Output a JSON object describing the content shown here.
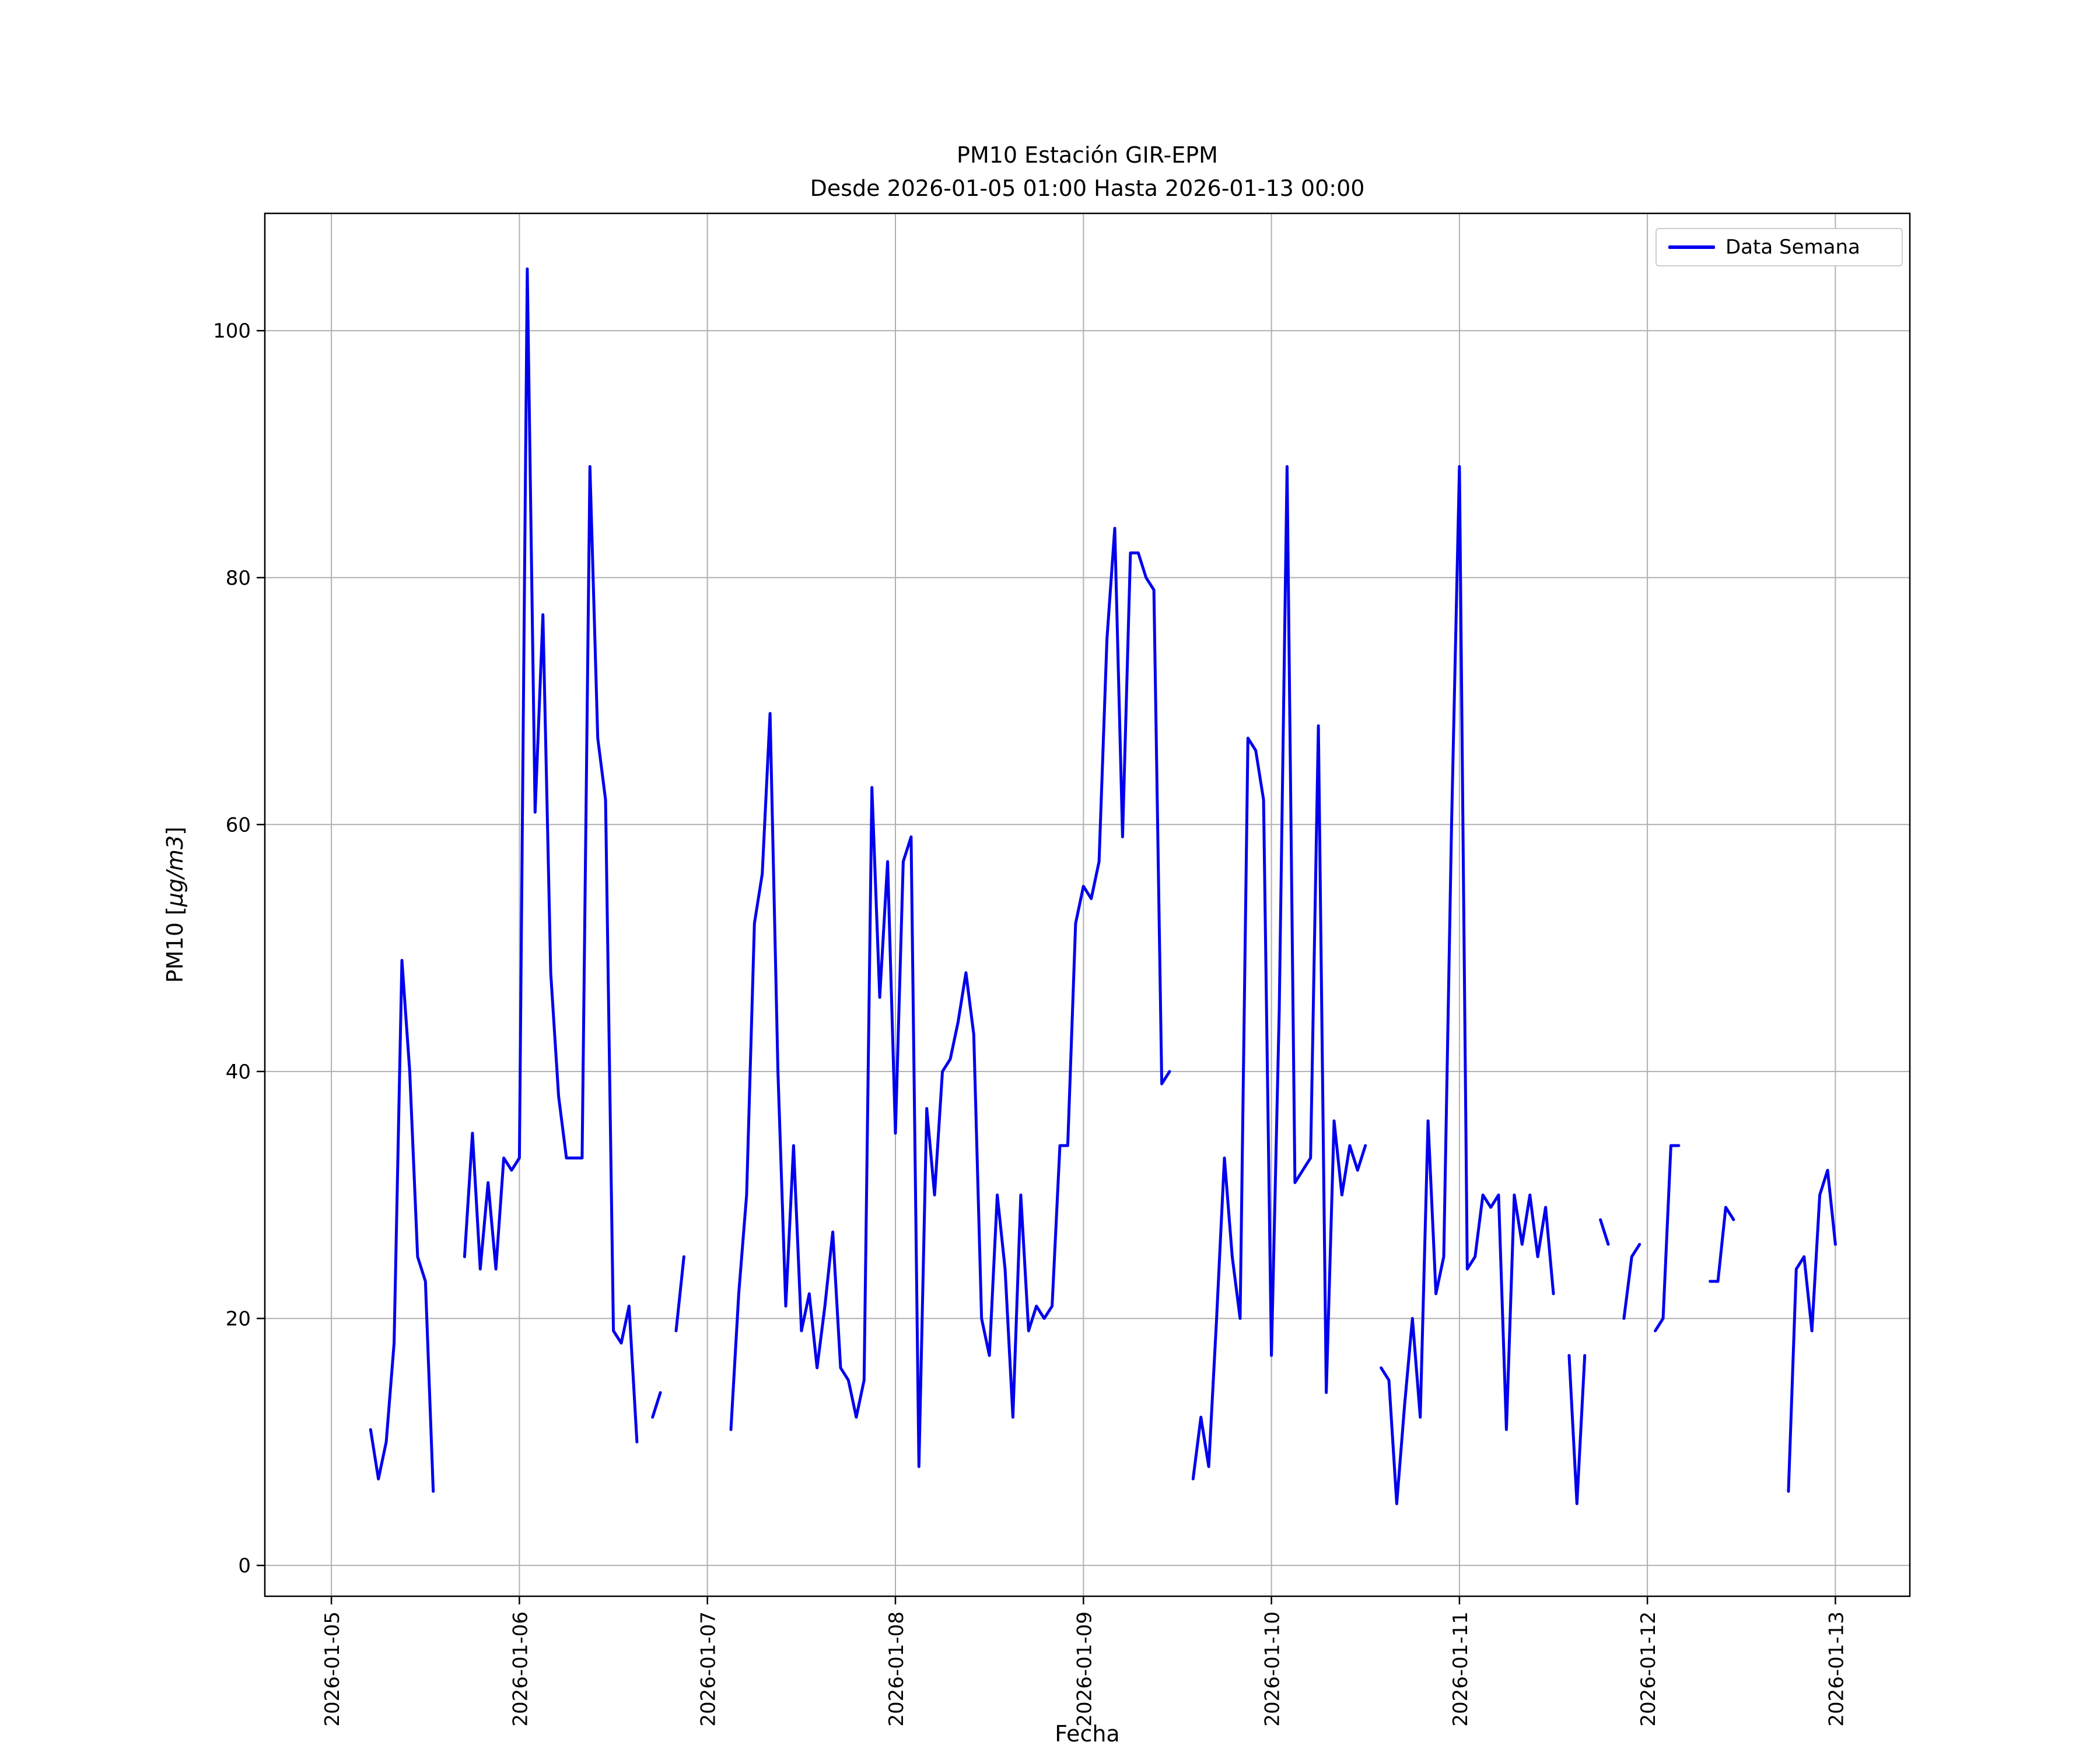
{
  "chart": {
    "title_line1": "PM10 Estación GIR-EPM",
    "title_line2": "Desde 2026-01-05 01:00 Hasta 2026-01-13 00:00",
    "xlabel": "Fecha",
    "ylabel_prefix": "PM10 [",
    "ylabel_math": "μg/m3",
    "ylabel_suffix": "]",
    "legend_label": "Data Semana",
    "line_color": "#0000ee",
    "grid_color": "#b0b0b0",
    "axis_color": "#000000"
  },
  "chart_data": {
    "type": "line",
    "title": "PM10 Estación GIR-EPM — Desde 2026-01-05 01:00 Hasta 2026-01-13 00:00",
    "xlabel": "Fecha",
    "ylabel": "PM10 [μg/m3]",
    "legend": [
      "Data Semana"
    ],
    "legend_position": "upper right",
    "grid": true,
    "station": "GIR-EPM",
    "start": "2026-01-05 01:00",
    "end": "2026-01-13 00:00",
    "interval_hours": 1,
    "x_tick_hours": [
      0,
      24,
      48,
      72,
      96,
      120,
      144,
      168,
      192
    ],
    "x_tick_labels": [
      "2026-01-05",
      "2026-01-06",
      "2026-01-07",
      "2026-01-08",
      "2026-01-09",
      "2026-01-10",
      "2026-01-11",
      "2026-01-12",
      "2026-01-13"
    ],
    "y_ticks": [
      0,
      20,
      40,
      60,
      80,
      100
    ],
    "ylim": [
      -2.5,
      109.5
    ],
    "xlim_hours": [
      -8.5,
      201.5
    ],
    "values": [
      null,
      null,
      null,
      null,
      11,
      7,
      10,
      18,
      49,
      40,
      25,
      23,
      6,
      null,
      null,
      null,
      25,
      35,
      24,
      31,
      24,
      33,
      32,
      33,
      105,
      61,
      77,
      48,
      38,
      33,
      33,
      33,
      89,
      67,
      62,
      19,
      18,
      21,
      10,
      null,
      12,
      14,
      null,
      19,
      25,
      null,
      null,
      null,
      null,
      null,
      11,
      22,
      30,
      52,
      56,
      69,
      40,
      21,
      34,
      19,
      22,
      16,
      21,
      27,
      16,
      15,
      12,
      15,
      63,
      46,
      57,
      35,
      57,
      59,
      8,
      37,
      30,
      40,
      41,
      44,
      48,
      43,
      20,
      17,
      30,
      24,
      12,
      30,
      19,
      21,
      20,
      21,
      34,
      34,
      52,
      55,
      54,
      57,
      75,
      84,
      59,
      82,
      82,
      80,
      79,
      39,
      40,
      null,
      null,
      7,
      12,
      8,
      20,
      33,
      25,
      20,
      67,
      66,
      62,
      17,
      45,
      89,
      31,
      32,
      33,
      68,
      14,
      36,
      30,
      34,
      32,
      34,
      null,
      16,
      15,
      5,
      13,
      20,
      12,
      36,
      22,
      25,
      60,
      89,
      24,
      25,
      30,
      29,
      30,
      11,
      30,
      26,
      30,
      25,
      29,
      22,
      null,
      17,
      5,
      17,
      null,
      28,
      26,
      null,
      20,
      25,
      26,
      null,
      19,
      20,
      34,
      34,
      null,
      null,
      null,
      23,
      23,
      29,
      28,
      null,
      null,
      null,
      null,
      null,
      null,
      6,
      24,
      25,
      19,
      30,
      32,
      26
    ]
  }
}
